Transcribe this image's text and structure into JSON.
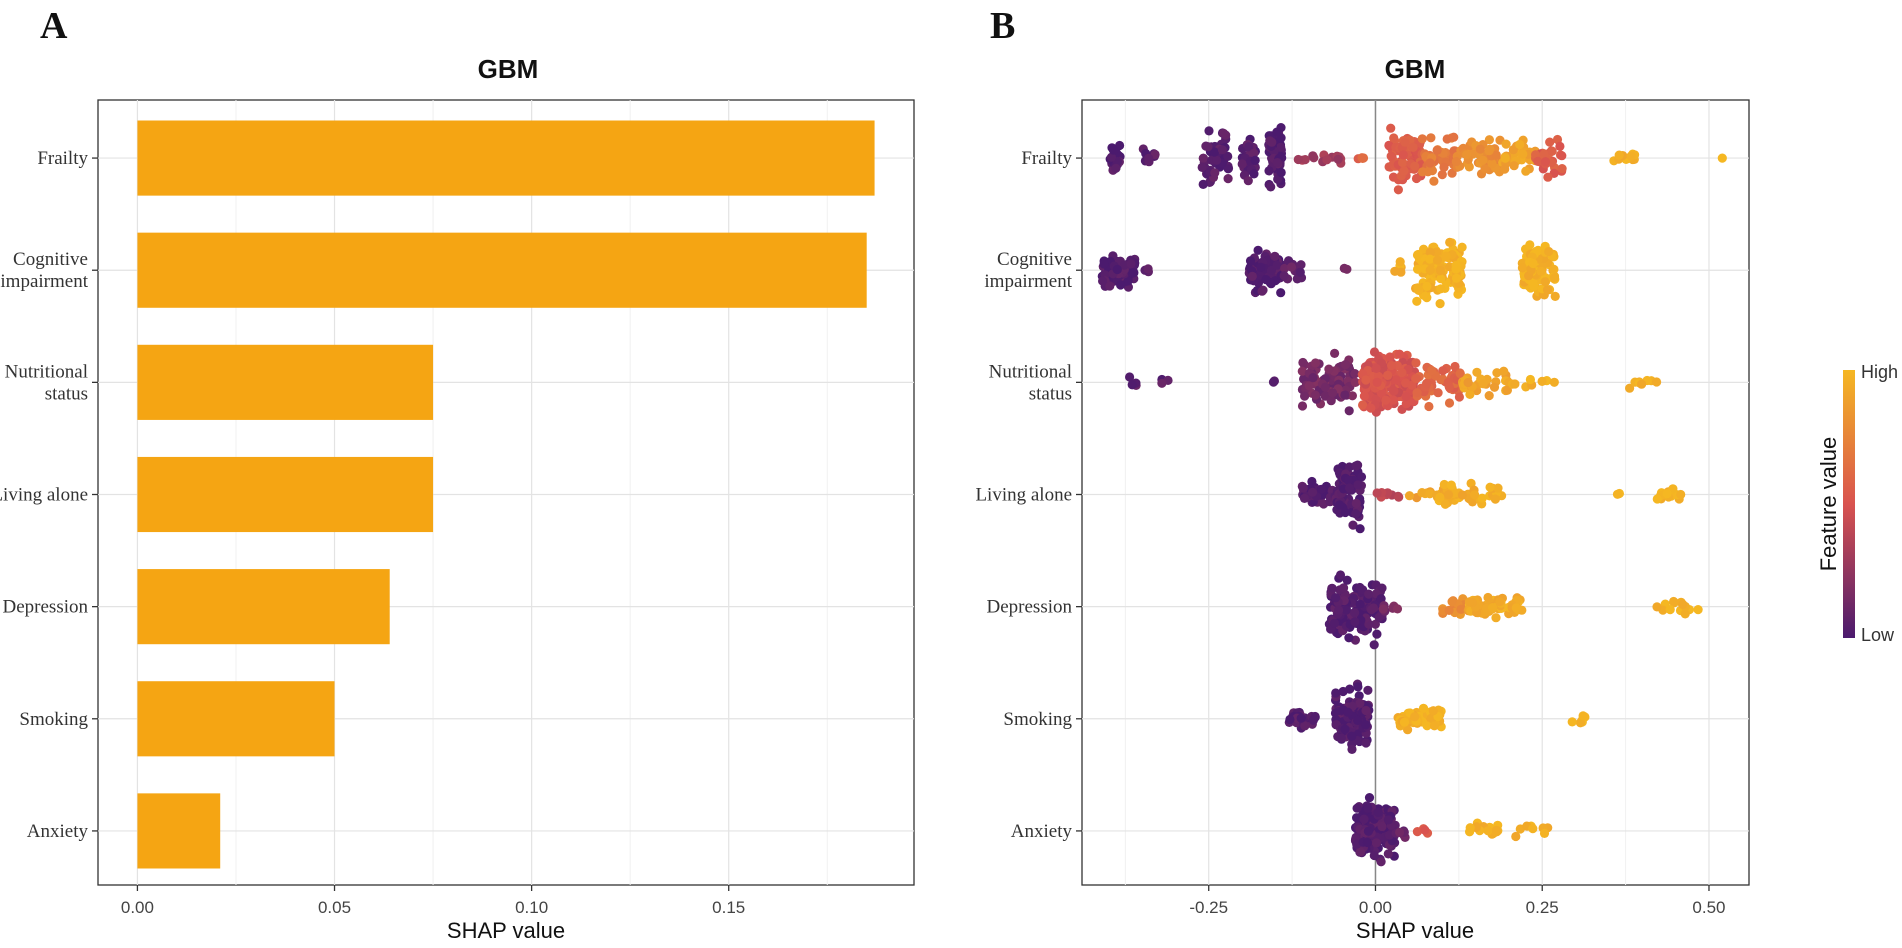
{
  "panels": {
    "a_letter": "A",
    "b_letter": "B"
  },
  "legend": {
    "title": "Feature value",
    "high": "High",
    "low": "Low",
    "color_low": "#4b1a6e",
    "color_mid": "#d9534f",
    "color_high": "#f5b722"
  },
  "colors": {
    "bar": "#f5a513"
  },
  "chart_data": [
    {
      "type": "bar",
      "orientation": "horizontal",
      "title": "GBM",
      "xlabel": "SHAP value",
      "ylabel": "",
      "categories": [
        "Frailty",
        "Cognitive impairment",
        "Nutritional status",
        "Living alone",
        "Depression",
        "Smoking",
        "Anxiety"
      ],
      "category_lines": [
        [
          "Frailty"
        ],
        [
          "Cognitive",
          "impairment"
        ],
        [
          "Nutritional",
          "status"
        ],
        [
          "Living alone"
        ],
        [
          "Depression"
        ],
        [
          "Smoking"
        ],
        [
          "Anxiety"
        ]
      ],
      "values": [
        0.187,
        0.185,
        0.075,
        0.075,
        0.064,
        0.05,
        0.021
      ],
      "xlim": [
        -0.01,
        0.197
      ],
      "xticks": [
        0,
        0.05,
        0.1,
        0.15
      ],
      "xtick_labels": [
        "0.00",
        "0.05",
        "0.10",
        "0.15"
      ],
      "grid": true
    },
    {
      "type": "scatter",
      "subtype": "beeswarm",
      "title": "GBM",
      "xlabel": "SHAP value",
      "ylabel": "",
      "categories": [
        "Frailty",
        "Cognitive impairment",
        "Nutritional status",
        "Living alone",
        "Depression",
        "Smoking",
        "Anxiety"
      ],
      "category_lines": [
        [
          "Frailty"
        ],
        [
          "Cognitive",
          "impairment"
        ],
        [
          "Nutritional",
          "status"
        ],
        [
          "Living alone"
        ],
        [
          "Depression"
        ],
        [
          "Smoking"
        ],
        [
          "Anxiety"
        ]
      ],
      "xlim": [
        -0.44,
        0.56
      ],
      "xticks": [
        -0.25,
        0,
        0.25,
        0.5
      ],
      "xtick_labels": [
        "-0.25",
        "0.00",
        "0.25",
        "0.50"
      ],
      "reference_line_x": 0,
      "grid": true,
      "color_scale": "feature value, 0 = Low (purple) to 1 = High (yellow)",
      "clusters": [
        [
          {
            "x": [
              -0.4,
              -0.38
            ],
            "n": 30,
            "spread": 0.55,
            "c": 0.02
          },
          {
            "x": [
              -0.35,
              -0.33
            ],
            "n": 10,
            "spread": 0.3,
            "c": 0.05
          },
          {
            "x": [
              -0.26,
              -0.22
            ],
            "n": 55,
            "spread": 0.9,
            "c": 0.05
          },
          {
            "x": [
              -0.2,
              -0.18
            ],
            "n": 30,
            "spread": 0.9,
            "c": 0.04
          },
          {
            "x": [
              -0.16,
              -0.14
            ],
            "n": 55,
            "spread": 1.0,
            "c": 0.03
          },
          {
            "x": [
              -0.12,
              -0.05
            ],
            "n": 14,
            "spread": 0.2,
            "c": 0.3
          },
          {
            "x": [
              -0.03,
              -0.01
            ],
            "n": 4,
            "spread": 0.15,
            "c": 0.6
          },
          {
            "x": [
              0.02,
              0.07
            ],
            "n": 85,
            "spread": 0.9,
            "c": 0.55
          },
          {
            "x": [
              0.07,
              0.12
            ],
            "n": 45,
            "spread": 0.7,
            "c": 0.7
          },
          {
            "x": [
              0.12,
              0.19
            ],
            "n": 50,
            "spread": 0.65,
            "c": 0.8
          },
          {
            "x": [
              0.19,
              0.24
            ],
            "n": 32,
            "spread": 0.55,
            "c": 0.9
          },
          {
            "x": [
              0.24,
              0.28
            ],
            "n": 28,
            "spread": 0.55,
            "c": 0.55
          },
          {
            "x": [
              0.35,
              0.39
            ],
            "n": 12,
            "spread": 0.25,
            "c": 0.97
          },
          {
            "x": [
              0.52,
              0.52
            ],
            "n": 1,
            "spread": 0.0,
            "c": 1.0
          }
        ],
        [
          {
            "x": [
              -0.41,
              -0.36
            ],
            "n": 75,
            "spread": 0.55,
            "c": 0.03
          },
          {
            "x": [
              -0.35,
              -0.34
            ],
            "n": 3,
            "spread": 0.1,
            "c": 0.05
          },
          {
            "x": [
              -0.19,
              -0.14
            ],
            "n": 60,
            "spread": 0.75,
            "c": 0.03
          },
          {
            "x": [
              -0.14,
              -0.11
            ],
            "n": 14,
            "spread": 0.45,
            "c": 0.08
          },
          {
            "x": [
              -0.06,
              -0.04
            ],
            "n": 2,
            "spread": 0.1,
            "c": 0.1
          },
          {
            "x": [
              0.02,
              0.04
            ],
            "n": 6,
            "spread": 0.4,
            "c": 0.97
          },
          {
            "x": [
              0.06,
              0.13
            ],
            "n": 120,
            "spread": 0.95,
            "c": 0.97
          },
          {
            "x": [
              0.22,
              0.27
            ],
            "n": 90,
            "spread": 0.8,
            "c": 0.97
          }
        ],
        [
          {
            "x": [
              -0.37,
              -0.35
            ],
            "n": 4,
            "spread": 0.2,
            "c": 0.05
          },
          {
            "x": [
              -0.33,
              -0.31
            ],
            "n": 3,
            "spread": 0.1,
            "c": 0.05
          },
          {
            "x": [
              -0.16,
              -0.15
            ],
            "n": 2,
            "spread": 0.1,
            "c": 0.05
          },
          {
            "x": [
              -0.11,
              -0.03
            ],
            "n": 95,
            "spread": 0.85,
            "c": 0.15
          },
          {
            "x": [
              -0.02,
              0.06
            ],
            "n": 230,
            "spread": 1.0,
            "c": 0.5
          },
          {
            "x": [
              0.06,
              0.13
            ],
            "n": 55,
            "spread": 0.65,
            "c": 0.6
          },
          {
            "x": [
              0.13,
              0.2
            ],
            "n": 30,
            "spread": 0.4,
            "c": 0.9
          },
          {
            "x": [
              0.2,
              0.27
            ],
            "n": 8,
            "spread": 0.2,
            "c": 0.97
          },
          {
            "x": [
              0.38,
              0.43
            ],
            "n": 8,
            "spread": 0.2,
            "c": 0.97
          }
        ],
        [
          {
            "x": [
              -0.11,
              -0.06
            ],
            "n": 45,
            "spread": 0.45,
            "c": 0.03
          },
          {
            "x": [
              -0.06,
              -0.02
            ],
            "n": 90,
            "spread": 1.0,
            "c": 0.03
          },
          {
            "x": [
              0.0,
              0.04
            ],
            "n": 8,
            "spread": 0.15,
            "c": 0.4
          },
          {
            "x": [
              0.05,
              0.09
            ],
            "n": 8,
            "spread": 0.15,
            "c": 0.9
          },
          {
            "x": [
              0.09,
              0.19
            ],
            "n": 45,
            "spread": 0.35,
            "c": 0.95
          },
          {
            "x": [
              0.36,
              0.37
            ],
            "n": 2,
            "spread": 0.1,
            "c": 0.97
          },
          {
            "x": [
              0.42,
              0.46
            ],
            "n": 14,
            "spread": 0.3,
            "c": 0.97
          }
        ],
        [
          {
            "x": [
              -0.07,
              0.01
            ],
            "n": 160,
            "spread": 1.0,
            "c": 0.03
          },
          {
            "x": [
              0.01,
              0.04
            ],
            "n": 6,
            "spread": 0.2,
            "c": 0.15
          },
          {
            "x": [
              0.1,
              0.14
            ],
            "n": 20,
            "spread": 0.25,
            "c": 0.8
          },
          {
            "x": [
              0.14,
              0.22
            ],
            "n": 55,
            "spread": 0.35,
            "c": 0.95
          },
          {
            "x": [
              0.42,
              0.5
            ],
            "n": 14,
            "spread": 0.25,
            "c": 0.97
          }
        ],
        [
          {
            "x": [
              -0.13,
              -0.09
            ],
            "n": 35,
            "spread": 0.35,
            "c": 0.03
          },
          {
            "x": [
              -0.06,
              -0.01
            ],
            "n": 140,
            "spread": 1.0,
            "c": 0.03
          },
          {
            "x": [
              0.03,
              0.1
            ],
            "n": 50,
            "spread": 0.35,
            "c": 0.97
          },
          {
            "x": [
              0.29,
              0.33
            ],
            "n": 6,
            "spread": 0.2,
            "c": 0.97
          }
        ],
        [
          {
            "x": [
              -0.03,
              0.03
            ],
            "n": 150,
            "spread": 1.0,
            "c": 0.03
          },
          {
            "x": [
              0.03,
              0.05
            ],
            "n": 6,
            "spread": 0.2,
            "c": 0.1
          },
          {
            "x": [
              0.06,
              0.08
            ],
            "n": 4,
            "spread": 0.15,
            "c": 0.5
          },
          {
            "x": [
              0.14,
              0.19
            ],
            "n": 18,
            "spread": 0.25,
            "c": 0.97
          },
          {
            "x": [
              0.21,
              0.26
            ],
            "n": 8,
            "spread": 0.2,
            "c": 0.97
          }
        ]
      ]
    }
  ]
}
